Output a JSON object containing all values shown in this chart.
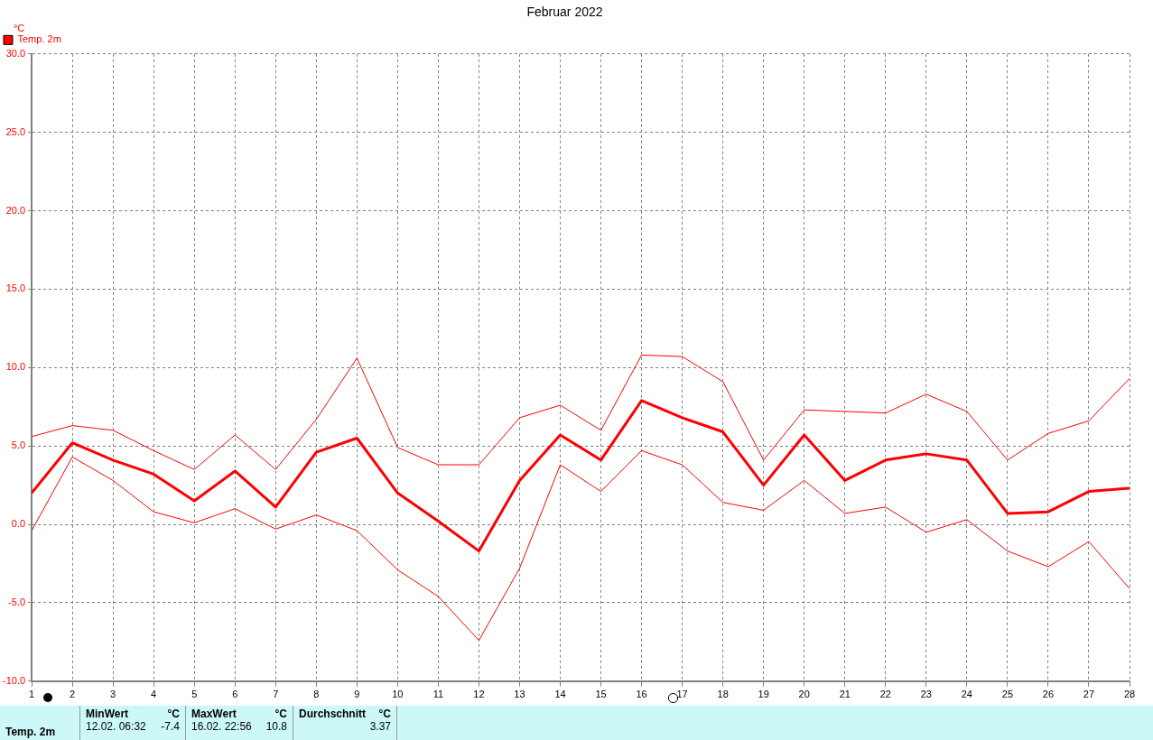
{
  "chart_data": {
    "type": "line",
    "title": "Februar 2022",
    "ylabel": "°C",
    "x": [
      1,
      2,
      3,
      4,
      5,
      6,
      7,
      8,
      9,
      10,
      11,
      12,
      13,
      14,
      15,
      16,
      17,
      18,
      19,
      20,
      21,
      22,
      23,
      24,
      25,
      26,
      27,
      28
    ],
    "xlim": [
      1,
      28
    ],
    "xticks": [
      1,
      2,
      3,
      4,
      5,
      6,
      7,
      8,
      9,
      10,
      11,
      12,
      13,
      14,
      15,
      16,
      17,
      18,
      19,
      20,
      21,
      22,
      23,
      24,
      25,
      26,
      27,
      28
    ],
    "ylim": [
      -10,
      30
    ],
    "yticks": [
      {
        "value": -10,
        "label": "-10.0"
      },
      {
        "value": -5,
        "label": "-5.0"
      },
      {
        "value": 0,
        "label": "0.0"
      },
      {
        "value": 5,
        "label": "5.0"
      },
      {
        "value": 10,
        "label": "10.0"
      },
      {
        "value": 15,
        "label": "15.0"
      },
      {
        "value": 20,
        "label": "20.0"
      },
      {
        "value": 25,
        "label": "25.0"
      },
      {
        "value": 30,
        "label": "30.0"
      }
    ],
    "grid": true,
    "legend": "top left",
    "marker": "none",
    "line_style": "solid",
    "series": [
      {
        "name": "Temp. 2m",
        "color": "#ff0000",
        "values": [
          2.0,
          5.2,
          4.1,
          3.2,
          1.5,
          3.4,
          1.1,
          4.6,
          5.5,
          2.0,
          0.2,
          -1.7,
          2.8,
          5.7,
          4.1,
          7.9,
          6.8,
          5.9,
          2.5,
          5.7,
          2.8,
          4.1,
          4.5,
          4.1,
          0.7,
          0.8,
          2.1,
          2.3
        ]
      },
      {
        "color": "#ff0000",
        "values": [
          5.6,
          6.3,
          6.0,
          4.7,
          3.5,
          5.7,
          3.5,
          6.7,
          10.6,
          4.9,
          3.8,
          3.8,
          6.8,
          7.6,
          6.0,
          10.8,
          10.7,
          9.1,
          4.1,
          7.3,
          7.2,
          7.1,
          8.3,
          7.2,
          4.1,
          5.8,
          6.6,
          9.3
        ]
      },
      {
        "color": "#ff0000",
        "values": [
          -0.4,
          4.3,
          2.8,
          0.8,
          0.1,
          1.0,
          -0.3,
          0.6,
          -0.4,
          -2.9,
          -4.6,
          -7.4,
          -2.8,
          3.8,
          2.1,
          4.7,
          3.8,
          1.4,
          0.9,
          2.8,
          0.7,
          1.1,
          -0.5,
          0.3,
          -1.7,
          -2.7,
          -1.1,
          -4.1
        ]
      }
    ],
    "annotations": [
      "Temp. 2m",
      "MinWert",
      "°C",
      "12.02.  06:32",
      "-7.4",
      "MaxWert",
      "°C",
      "16.02.  22:56",
      "10.8",
      "Durchschnitt",
      "°C",
      "3.37"
    ]
  }
}
